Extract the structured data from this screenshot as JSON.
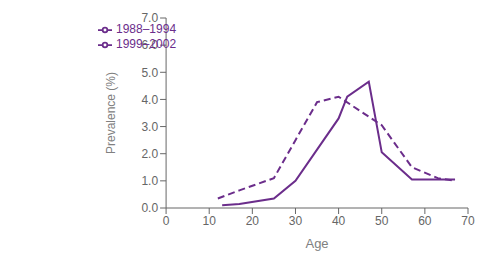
{
  "chart_data": {
    "type": "line",
    "xlabel": "Age",
    "ylabel": "Prevalence (%)",
    "xlim": [
      0,
      70
    ],
    "ylim": [
      0.0,
      7.0
    ],
    "xticks": [
      0,
      10,
      20,
      30,
      40,
      50,
      60,
      70
    ],
    "yticks": [
      {
        "value": 0.0,
        "label": "0.0"
      },
      {
        "value": 1.0,
        "label": "1.0"
      },
      {
        "value": 2.0,
        "label": "2.0"
      },
      {
        "value": 3.0,
        "label": "3.0"
      },
      {
        "value": 4.0,
        "label": "4.0"
      },
      {
        "value": 5.0,
        "label": "5.0"
      },
      {
        "value": 6.0,
        "label": "6.0"
      },
      {
        "value": 7.0,
        "label": "7.0"
      }
    ],
    "grid": false,
    "legend": "upper left",
    "series": [
      {
        "name": "1988–1994",
        "color": "#6b2d8b",
        "line_style": "dashed",
        "x": [
          12,
          17,
          25,
          30,
          35,
          40,
          50,
          57,
          63,
          67
        ],
        "values": [
          0.35,
          0.65,
          1.1,
          2.5,
          3.9,
          4.1,
          3.05,
          1.5,
          1.1,
          1.0
        ]
      },
      {
        "name": "1999–2002",
        "color": "#6b2d8b",
        "line_style": "solid",
        "x": [
          13,
          17,
          25,
          30,
          40,
          42,
          47,
          50,
          57,
          67
        ],
        "values": [
          0.1,
          0.15,
          0.35,
          1.0,
          3.3,
          4.1,
          4.65,
          2.05,
          1.05,
          1.05
        ]
      }
    ]
  }
}
